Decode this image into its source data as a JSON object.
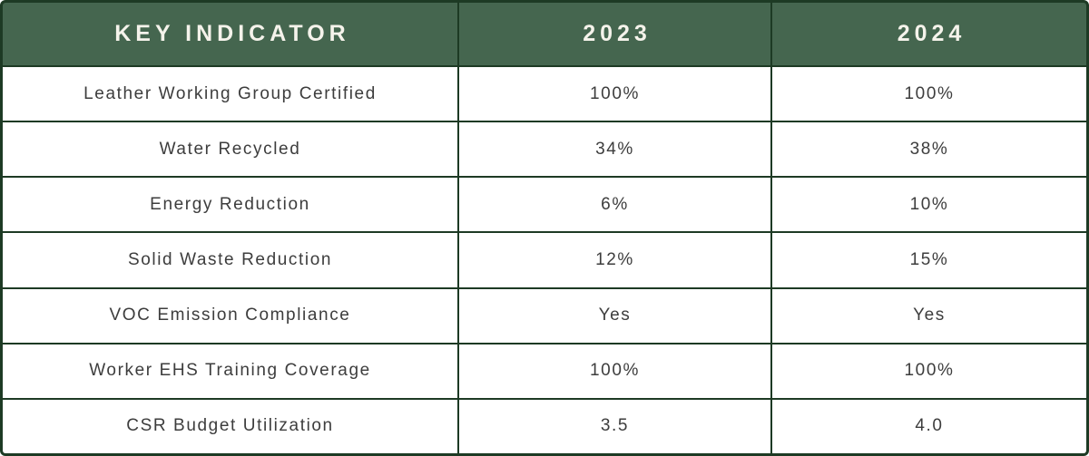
{
  "table": {
    "columns": [
      "KEY INDICATOR",
      "2023",
      "2024"
    ],
    "rows": [
      {
        "indicator": "Leather Working Group Certified",
        "y2023": "100%",
        "y2024": "100%"
      },
      {
        "indicator": "Water Recycled",
        "y2023": "34%",
        "y2024": "38%"
      },
      {
        "indicator": "Energy Reduction",
        "y2023": "6%",
        "y2024": "10%"
      },
      {
        "indicator": "Solid Waste Reduction",
        "y2023": "12%",
        "y2024": "15%"
      },
      {
        "indicator": "VOC Emission Compliance",
        "y2023": "Yes",
        "y2024": "Yes"
      },
      {
        "indicator": "Worker EHS Training Coverage",
        "y2023": "100%",
        "y2024": "100%"
      },
      {
        "indicator": "CSR Budget Utilization",
        "y2023": "3.5",
        "y2024": "4.0"
      }
    ]
  },
  "chart_data": {
    "type": "table",
    "title": "",
    "columns": [
      "KEY INDICATOR",
      "2023",
      "2024"
    ],
    "rows": [
      [
        "Leather Working Group Certified",
        "100%",
        "100%"
      ],
      [
        "Water Recycled",
        "34%",
        "38%"
      ],
      [
        "Energy Reduction",
        "6%",
        "10%"
      ],
      [
        "Solid Waste Reduction",
        "12%",
        "15%"
      ],
      [
        "VOC Emission Compliance",
        "Yes",
        "Yes"
      ],
      [
        "Worker EHS Training Coverage",
        "100%",
        "100%"
      ],
      [
        "CSR Budget Utilization",
        "3.5",
        "4.0"
      ]
    ]
  },
  "colors": {
    "header_background": "#45664F",
    "header_text": "#F5F3EB",
    "grid_border": "#1D3A24",
    "cell_background": "#FFFFFF",
    "body_text": "#3D3D3D"
  }
}
